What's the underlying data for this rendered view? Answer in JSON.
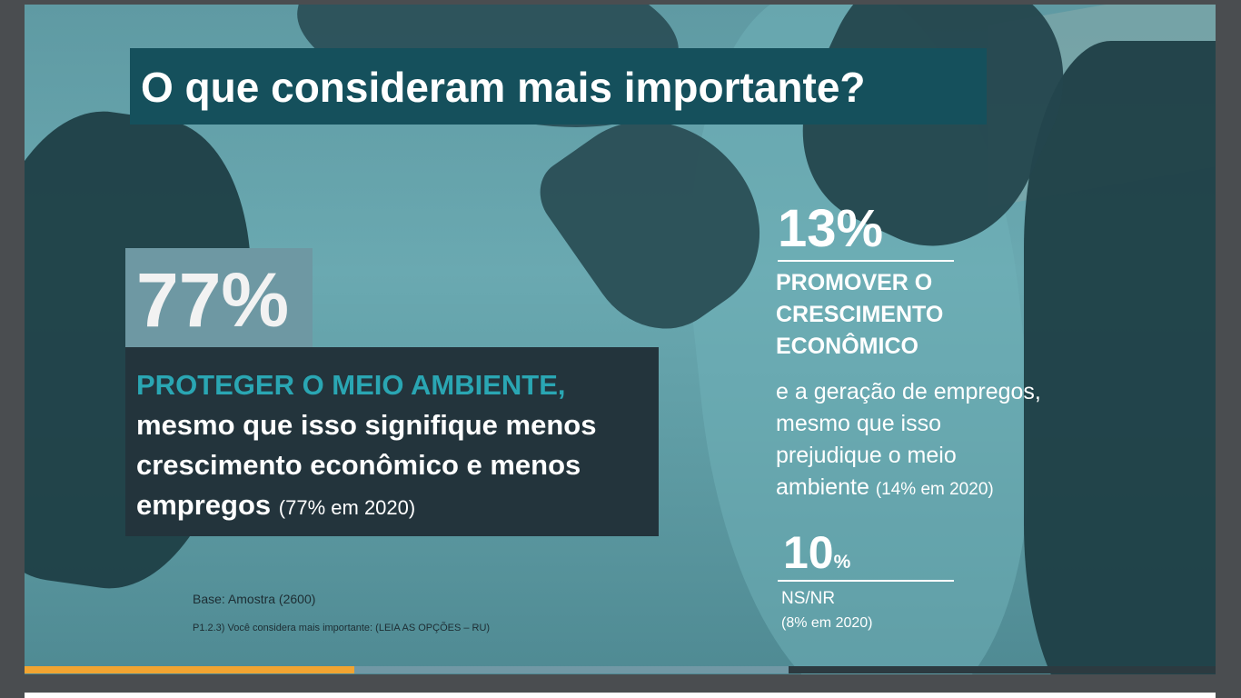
{
  "title": "O que consideram mais importante?",
  "option_main": {
    "percent": "77%",
    "headline": "PROTEGER O MEIO AMBIENTE,",
    "text": "mesmo que isso signifique menos crescimento econômico e menos empregos",
    "note": "(77% em 2020)"
  },
  "option_second": {
    "percent": "13%",
    "headline": "PROMOVER O CRESCIMENTO ECONÔMICO",
    "text": "e a geração de empregos, mesmo que isso prejudique o meio ambiente",
    "note": "(14% em 2020)"
  },
  "option_third": {
    "percent_value": "10",
    "percent_sign": "%",
    "label": "NS/NR",
    "note": "(8% em 2020)"
  },
  "footnote": {
    "base": "Base: Amostra (2600)",
    "question": "P1.2.3) Você considera mais importante: (LEIA AS OPÇÕES – RU)"
  },
  "colors": {
    "title_bg": "#15505c",
    "accent": "#2aa6b3",
    "orange": "#f2a431"
  }
}
